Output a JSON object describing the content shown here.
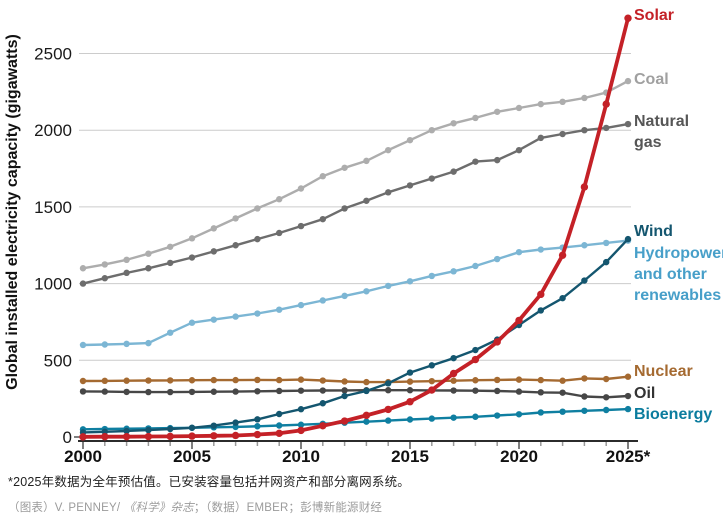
{
  "chart_data": {
    "type": "line",
    "title": "",
    "ylabel": "Global installed electricity capacity (gigawatts)",
    "x": [
      2000,
      2001,
      2002,
      2003,
      2004,
      2005,
      2006,
      2007,
      2008,
      2009,
      2010,
      2011,
      2012,
      2013,
      2014,
      2015,
      2016,
      2017,
      2018,
      2019,
      2020,
      2021,
      2022,
      2023,
      2024,
      2025
    ],
    "x_ticks": [
      2000,
      2005,
      2010,
      2015,
      2020,
      2025
    ],
    "x_tick_labels": [
      "2000",
      "2005",
      "2010",
      "2015",
      "2020",
      "2025*"
    ],
    "y_ticks": [
      0,
      500,
      1000,
      1500,
      2000,
      2500
    ],
    "ylim": [
      0,
      2770
    ],
    "grid": "horizontal",
    "legend_position": "right-edge-labels",
    "series": [
      {
        "name": "Solar",
        "label_lines": [
          "Solar"
        ],
        "color": "#c42127",
        "label_color": "#c42127",
        "values": [
          1,
          2,
          2,
          3,
          4,
          6,
          8,
          10,
          16,
          24,
          43,
          73,
          104,
          141,
          180,
          230,
          306,
          414,
          505,
          620,
          760,
          930,
          1185,
          1630,
          2170,
          2730
        ]
      },
      {
        "name": "Coal",
        "label_lines": [
          "Coal"
        ],
        "color": "#adadad",
        "label_color": "#a0a0a0",
        "values": [
          1100,
          1125,
          1155,
          1195,
          1240,
          1295,
          1360,
          1425,
          1490,
          1550,
          1620,
          1700,
          1755,
          1800,
          1870,
          1935,
          2000,
          2045,
          2080,
          2120,
          2145,
          2170,
          2185,
          2210,
          2245,
          2320
        ]
      },
      {
        "name": "Natural gas",
        "label_lines": [
          "Natural",
          "gas"
        ],
        "color": "#6d6d6d",
        "label_color": "#565656",
        "values": [
          1000,
          1035,
          1070,
          1100,
          1135,
          1170,
          1210,
          1250,
          1290,
          1330,
          1375,
          1420,
          1490,
          1540,
          1595,
          1640,
          1685,
          1730,
          1795,
          1805,
          1870,
          1950,
          1975,
          2000,
          2015,
          2040
        ]
      },
      {
        "name": "Wind",
        "label_lines": [
          "Wind"
        ],
        "color": "#14566f",
        "label_color": "#14566f",
        "values": [
          30,
          34,
          39,
          45,
          52,
          60,
          74,
          94,
          115,
          150,
          181,
          220,
          267,
          300,
          350,
          420,
          467,
          514,
          567,
          635,
          730,
          825,
          905,
          1020,
          1140,
          1290
        ]
      },
      {
        "name": "Hydropower and other renewables",
        "label_lines": [
          "Hydropower",
          "and other",
          "renewables"
        ],
        "color": "#7cb6d4",
        "label_color": "#479fc9",
        "values": [
          600,
          603,
          607,
          612,
          680,
          745,
          765,
          785,
          805,
          830,
          860,
          890,
          920,
          950,
          985,
          1015,
          1050,
          1080,
          1115,
          1160,
          1205,
          1222,
          1235,
          1250,
          1265,
          1280
        ]
      },
      {
        "name": "Nuclear",
        "label_lines": [
          "Nuclear"
        ],
        "color": "#a56a31",
        "label_color": "#a56a31",
        "values": [
          365,
          366,
          367,
          368,
          369,
          370,
          371,
          371,
          372,
          371,
          374,
          368,
          362,
          358,
          358,
          361,
          364,
          367,
          370,
          372,
          374,
          371,
          367,
          382,
          378,
          393
        ]
      },
      {
        "name": "Oil",
        "label_lines": [
          "Oil"
        ],
        "color": "#474747",
        "label_color": "#333333",
        "values": [
          297,
          296,
          294,
          293,
          293,
          294,
          295,
          296,
          298,
          300,
          302,
          303,
          304,
          305,
          305,
          305,
          304,
          303,
          302,
          300,
          296,
          291,
          289,
          264,
          259,
          267
        ]
      },
      {
        "name": "Bioenergy",
        "label_lines": [
          "Bioenergy"
        ],
        "color": "#0f7fa1",
        "label_color": "#0b7c9e",
        "values": [
          50,
          52,
          54,
          56,
          58,
          60,
          63,
          66,
          70,
          75,
          80,
          86,
          93,
          100,
          107,
          114,
          120,
          126,
          132,
          140,
          148,
          160,
          165,
          171,
          176,
          182
        ]
      }
    ]
  },
  "footnote": "*2025年数据为全年预估值。已安装容量包括并网资产和部分离网系统。",
  "credit": {
    "parts": [
      "（图表）V. PENNEY/ ",
      "《科学》杂志",
      "；（数据）EMBER；彭博新能源财经"
    ]
  }
}
